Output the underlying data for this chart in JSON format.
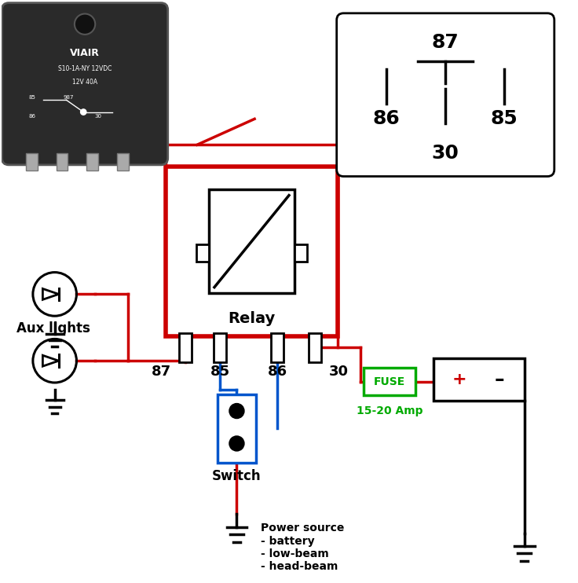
{
  "bg_color": "#ffffff",
  "red_color": "#cc0000",
  "black_color": "#000000",
  "blue_color": "#0055cc",
  "fuse_green": "#00aa00",
  "photo_dark": "#2a2a2a",
  "photo_edge": "#555555",
  "pin_gray": "#aaaaaa",
  "relay_label": "Relay",
  "fuse_label": "FUSE",
  "fuse_rating": "15-20 Amp",
  "switch_label": "Switch",
  "aux_label": "Aux lights",
  "power_label": "Power source\n- battery\n- low-beam\n- head-beam",
  "viair_line1": "VIAIR",
  "viair_line2": "S10-1A-NY 12VDC",
  "viair_line3": "12V 40A"
}
